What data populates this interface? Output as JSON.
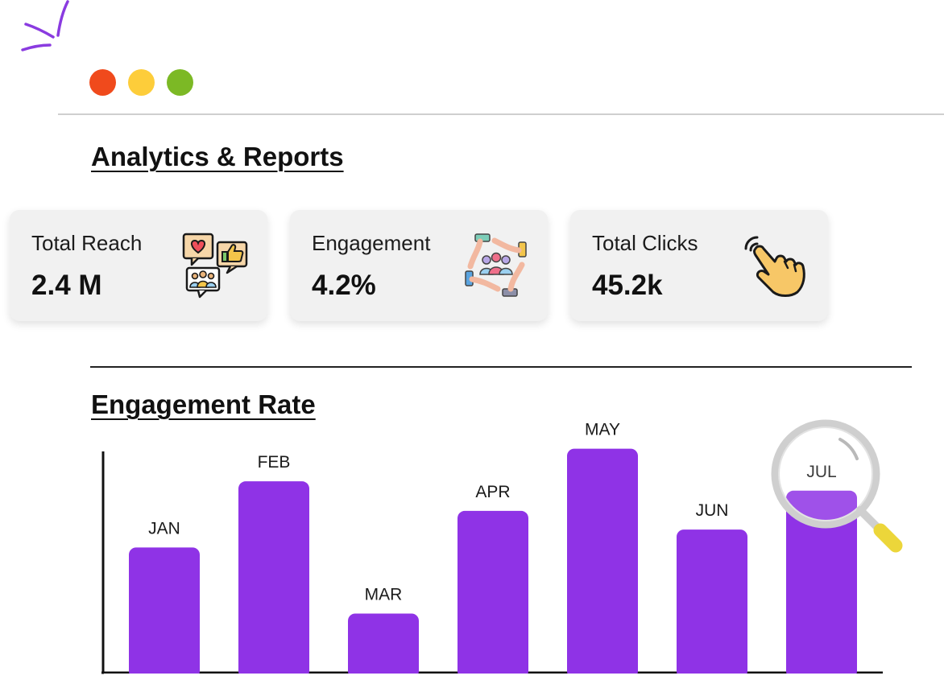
{
  "window": {
    "dots": [
      {
        "name": "close",
        "color": "#f04a1c"
      },
      {
        "name": "minimize",
        "color": "#fdcd3a"
      },
      {
        "name": "maximize",
        "color": "#7cb925"
      }
    ]
  },
  "analytics": {
    "title": "Analytics & Reports",
    "cards": {
      "reach": {
        "label": "Total Reach",
        "value": "2.4 M",
        "icon": "social-feedback-icon"
      },
      "engagement": {
        "label": "Engagement",
        "value": "4.2%",
        "icon": "community-hands-icon"
      },
      "clicks": {
        "label": "Total Clicks",
        "value": "45.2k",
        "icon": "pointing-hand-icon"
      }
    }
  },
  "engagement_rate": {
    "title": "Engagement Rate"
  },
  "colors": {
    "bar": "#8f33e6",
    "accent_sparkle": "#8a3be0"
  },
  "chart_data": {
    "type": "bar",
    "title": "Engagement Rate",
    "categories": [
      "JAN",
      "FEB",
      "MAR",
      "APR",
      "MAY",
      "JUN",
      "JUL"
    ],
    "values": [
      160,
      245,
      75,
      207,
      287,
      183,
      233
    ],
    "ylim": [
      0,
      300
    ],
    "grid": false,
    "legend": "none",
    "highlighted": "JUL"
  }
}
